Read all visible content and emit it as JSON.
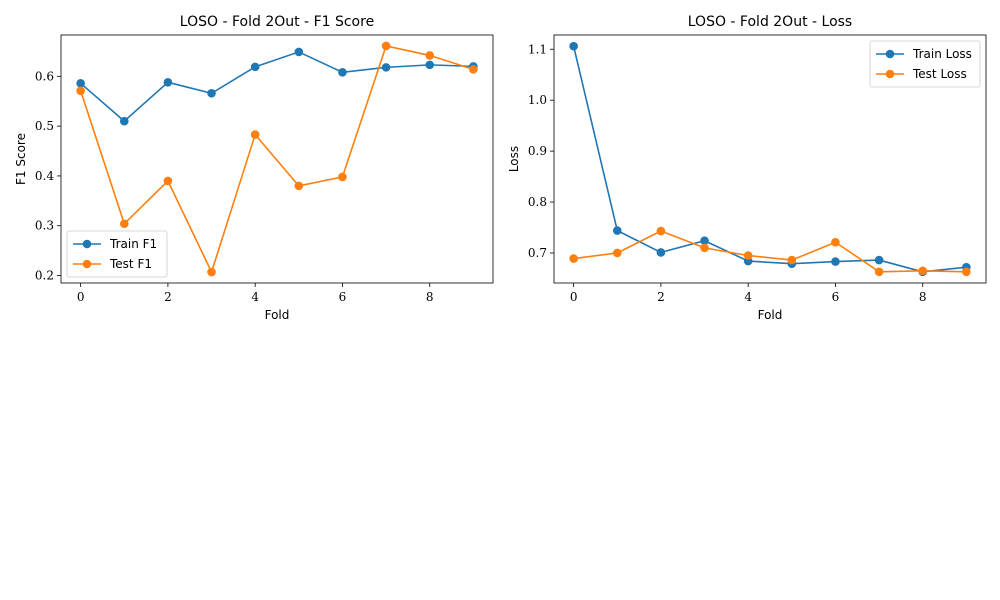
{
  "colors": {
    "series1": "#1f77b4",
    "series2": "#ff7f0e"
  },
  "chart_data": [
    {
      "type": "line",
      "title": "LOSO - Fold 2Out - F1 Score",
      "xlabel": "Fold",
      "ylabel": "F1 Score",
      "x": [
        0,
        1,
        2,
        3,
        4,
        5,
        6,
        7,
        8,
        9
      ],
      "xlim": [
        -0.45,
        9.45
      ],
      "ylim": [
        0.185,
        0.683
      ],
      "xticks": [
        0,
        2,
        4,
        6,
        8
      ],
      "yticks": [
        0.2,
        0.3,
        0.4,
        0.5,
        0.6
      ],
      "ytick_labels": [
        "0.2",
        "0.3",
        "0.4",
        "0.5",
        "0.6"
      ],
      "xtick_labels": [
        "0",
        "2",
        "4",
        "6",
        "8"
      ],
      "grid": false,
      "legend_position": "lower-left",
      "series": [
        {
          "name": "Train F1",
          "color": "#1f77b4",
          "values": [
            0.586,
            0.51,
            0.588,
            0.566,
            0.619,
            0.649,
            0.608,
            0.618,
            0.623,
            0.62
          ]
        },
        {
          "name": "Test F1",
          "color": "#ff7f0e",
          "values": [
            0.571,
            0.304,
            0.39,
            0.207,
            0.483,
            0.38,
            0.398,
            0.661,
            0.642,
            0.614
          ]
        }
      ]
    },
    {
      "type": "line",
      "title": "LOSO - Fold 2Out - Loss",
      "xlabel": "Fold",
      "ylabel": "Loss",
      "x": [
        0,
        1,
        2,
        3,
        4,
        5,
        6,
        7,
        8,
        9
      ],
      "xlim": [
        -0.45,
        9.45
      ],
      "ylim": [
        0.641,
        1.128
      ],
      "xticks": [
        0,
        2,
        4,
        6,
        8
      ],
      "yticks": [
        0.7,
        0.8,
        0.9,
        1.0,
        1.1
      ],
      "ytick_labels": [
        "0.7",
        "0.8",
        "0.9",
        "1.0",
        "1.1"
      ],
      "xtick_labels": [
        "0",
        "2",
        "4",
        "6",
        "8"
      ],
      "grid": false,
      "legend_position": "upper-right",
      "series": [
        {
          "name": "Train Loss",
          "color": "#1f77b4",
          "values": [
            1.106,
            0.744,
            0.701,
            0.724,
            0.684,
            0.679,
            0.683,
            0.686,
            0.663,
            0.672
          ]
        },
        {
          "name": "Test Loss",
          "color": "#ff7f0e",
          "values": [
            0.689,
            0.7,
            0.743,
            0.71,
            0.695,
            0.686,
            0.721,
            0.663,
            0.665,
            0.663
          ]
        }
      ]
    }
  ]
}
